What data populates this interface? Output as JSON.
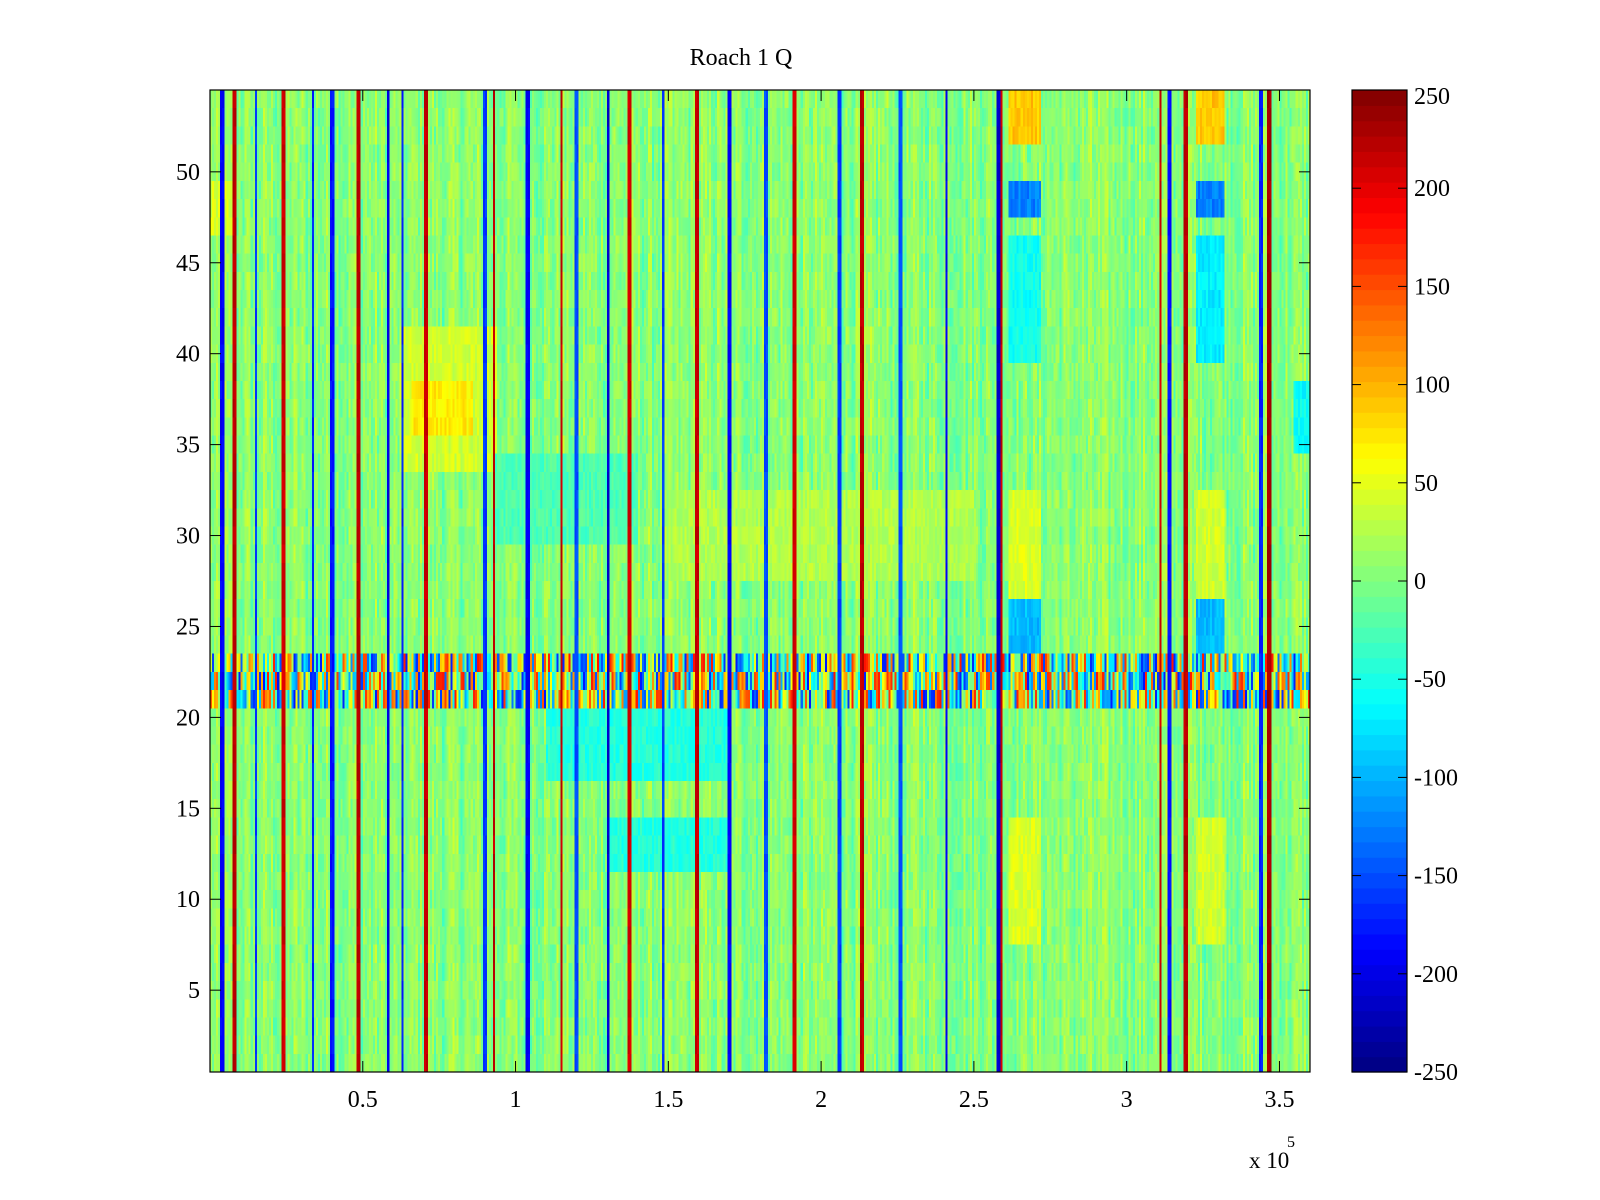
{
  "chart_data": {
    "type": "heatmap",
    "title": "Roach 1 Q",
    "xlabel": "",
    "ylabel": "",
    "x_range": [
      0,
      360000
    ],
    "y_range": [
      0.5,
      54.5
    ],
    "x_exponent_label": "x 10",
    "x_exponent_power": "5",
    "x_ticks": [
      {
        "value": 50000,
        "label": "0.5"
      },
      {
        "value": 100000,
        "label": "1"
      },
      {
        "value": 150000,
        "label": "1.5"
      },
      {
        "value": 200000,
        "label": "2"
      },
      {
        "value": 250000,
        "label": "2.5"
      },
      {
        "value": 300000,
        "label": "3"
      },
      {
        "value": 350000,
        "label": "3.5"
      }
    ],
    "y_ticks": [
      {
        "value": 5,
        "label": "5"
      },
      {
        "value": 10,
        "label": "10"
      },
      {
        "value": 15,
        "label": "15"
      },
      {
        "value": 20,
        "label": "20"
      },
      {
        "value": 25,
        "label": "25"
      },
      {
        "value": 30,
        "label": "30"
      },
      {
        "value": 35,
        "label": "35"
      },
      {
        "value": 40,
        "label": "40"
      },
      {
        "value": 45,
        "label": "45"
      },
      {
        "value": 50,
        "label": "50"
      }
    ],
    "colorbar": {
      "colormap": "jet",
      "range": [
        -250,
        250
      ],
      "ticks": [
        {
          "value": 250,
          "label": "250"
        },
        {
          "value": 200,
          "label": "200"
        },
        {
          "value": 150,
          "label": "150"
        },
        {
          "value": 100,
          "label": "100"
        },
        {
          "value": 50,
          "label": "50"
        },
        {
          "value": 0,
          "label": "0"
        },
        {
          "value": -50,
          "label": "-50"
        },
        {
          "value": -100,
          "label": "-100"
        },
        {
          "value": -150,
          "label": "-150"
        },
        {
          "value": -200,
          "label": "-200"
        },
        {
          "value": -250,
          "label": "-250"
        }
      ]
    },
    "rows": 54,
    "baseline_value": 5,
    "spike_columns": [
      {
        "x": 8000,
        "value": 220
      },
      {
        "x": 24000,
        "value": 210
      },
      {
        "x": 48500,
        "value": 220
      },
      {
        "x": 70500,
        "value": 215
      },
      {
        "x": 93000,
        "value": 220
      },
      {
        "x": 115000,
        "value": 215
      },
      {
        "x": 137500,
        "value": 210
      },
      {
        "x": 159500,
        "value": 215
      },
      {
        "x": 191500,
        "value": 210
      },
      {
        "x": 213500,
        "value": 220
      },
      {
        "x": 258500,
        "value": 215
      },
      {
        "x": 311000,
        "value": 210
      },
      {
        "x": 319500,
        "value": 220
      },
      {
        "x": 346500,
        "value": 230
      }
    ],
    "dip_columns": [
      {
        "x": 4000,
        "value": -190
      },
      {
        "x": 15000,
        "value": -160
      },
      {
        "x": 33500,
        "value": -170
      },
      {
        "x": 40000,
        "value": -180
      },
      {
        "x": 58500,
        "value": -200
      },
      {
        "x": 63000,
        "value": -170
      },
      {
        "x": 90000,
        "value": -160
      },
      {
        "x": 104000,
        "value": -190
      },
      {
        "x": 120000,
        "value": -150
      },
      {
        "x": 130500,
        "value": -210
      },
      {
        "x": 148500,
        "value": -160
      },
      {
        "x": 170000,
        "value": -190
      },
      {
        "x": 182000,
        "value": -150
      },
      {
        "x": 206000,
        "value": -160
      },
      {
        "x": 226000,
        "value": -150
      },
      {
        "x": 241000,
        "value": -190
      },
      {
        "x": 258000,
        "value": -210
      },
      {
        "x": 314000,
        "value": -180
      },
      {
        "x": 344000,
        "value": -170
      }
    ],
    "regions": [
      {
        "x": [
          0,
          8000
        ],
        "y": [
          47,
          49
        ],
        "value": 45
      },
      {
        "x": [
          62000,
          94000
        ],
        "y": [
          34,
          41
        ],
        "value": 40
      },
      {
        "x": [
          66000,
          86000
        ],
        "y": [
          36,
          38
        ],
        "value": 70
      },
      {
        "x": [
          93000,
          140000
        ],
        "y": [
          30,
          34
        ],
        "value": -25
      },
      {
        "x": [
          110000,
          170000
        ],
        "y": [
          17,
          21
        ],
        "value": -45
      },
      {
        "x": [
          130000,
          170000
        ],
        "y": [
          12,
          14
        ],
        "value": -45
      },
      {
        "x": [
          150000,
          250000
        ],
        "y": [
          28,
          32
        ],
        "value": 25
      },
      {
        "x": [
          0,
          360000
        ],
        "y": [
          21,
          23
        ],
        "value": 0
      },
      {
        "x": [
          261000,
          272000
        ],
        "y": [
          52,
          54.5
        ],
        "value": 90
      },
      {
        "x": [
          261000,
          272000
        ],
        "y": [
          47.5,
          49.5
        ],
        "value": -125
      },
      {
        "x": [
          261000,
          272000
        ],
        "y": [
          40,
          46
        ],
        "value": -55
      },
      {
        "x": [
          261000,
          272000
        ],
        "y": [
          24,
          26
        ],
        "value": -95
      },
      {
        "x": [
          261000,
          272000
        ],
        "y": [
          27,
          32
        ],
        "value": 45
      },
      {
        "x": [
          261000,
          272000
        ],
        "y": [
          8,
          14
        ],
        "value": 45
      },
      {
        "x": [
          323000,
          332000
        ],
        "y": [
          52,
          54.5
        ],
        "value": 90
      },
      {
        "x": [
          323000,
          332000
        ],
        "y": [
          47.5,
          49.5
        ],
        "value": -125
      },
      {
        "x": [
          323000,
          332000
        ],
        "y": [
          40,
          46
        ],
        "value": -70
      },
      {
        "x": [
          323000,
          332000
        ],
        "y": [
          24,
          26
        ],
        "value": -95
      },
      {
        "x": [
          323000,
          332000
        ],
        "y": [
          27,
          32
        ],
        "value": 40
      },
      {
        "x": [
          323000,
          332000
        ],
        "y": [
          8,
          14
        ],
        "value": 40
      },
      {
        "x": [
          355000,
          360000
        ],
        "y": [
          35,
          38
        ],
        "value": -60
      }
    ],
    "noise_amplitude": 30
  }
}
